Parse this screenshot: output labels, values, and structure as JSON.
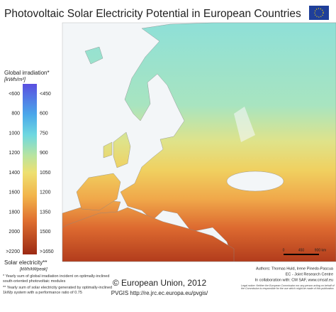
{
  "header": {
    "title": "Photovoltaic Solar Electricity Potential in European Countries"
  },
  "legend": {
    "irradiation_title": "Global irradiation*",
    "irradiation_unit": "[kWh/m²]",
    "irradiation_labels": [
      "<600",
      "800",
      "1000",
      "1200",
      "1400",
      "1600",
      "1800",
      "2000",
      ">2200"
    ],
    "electricity_labels": [
      "<450",
      "600",
      "750",
      "900",
      "1050",
      "1200",
      "1350",
      "1500",
      ">1650"
    ],
    "electricity_title": "Solar electricity**",
    "electricity_unit": "[kWh/kWpeak]"
  },
  "footer": {
    "note1": "* Yearly sum of global irradiation incident on optimally-inclined south-oriented photovoltaic modules",
    "note2": "** Yearly sum of solar electricity generated by optimally-inclined 1kWp system with a performance ratio of 0.75",
    "copyright": "© European Union, 2012",
    "url": "PVGIS http://re.jrc.ec.europa.eu/pvgis/",
    "authors": "Authors: Thomas Huld, Irene Pinedo-Pascua",
    "institution": "EC - Joint Research Centre",
    "collaboration": "In collaboration with: CM SAF, www.cmsaf.eu",
    "legal": "Legal notice: Neither the European Commission nor any person acting on behalf of the Commission is responsible for the use which might be made of this publication."
  },
  "scale": {
    "labels": [
      "0",
      "450",
      "900 km"
    ]
  }
}
